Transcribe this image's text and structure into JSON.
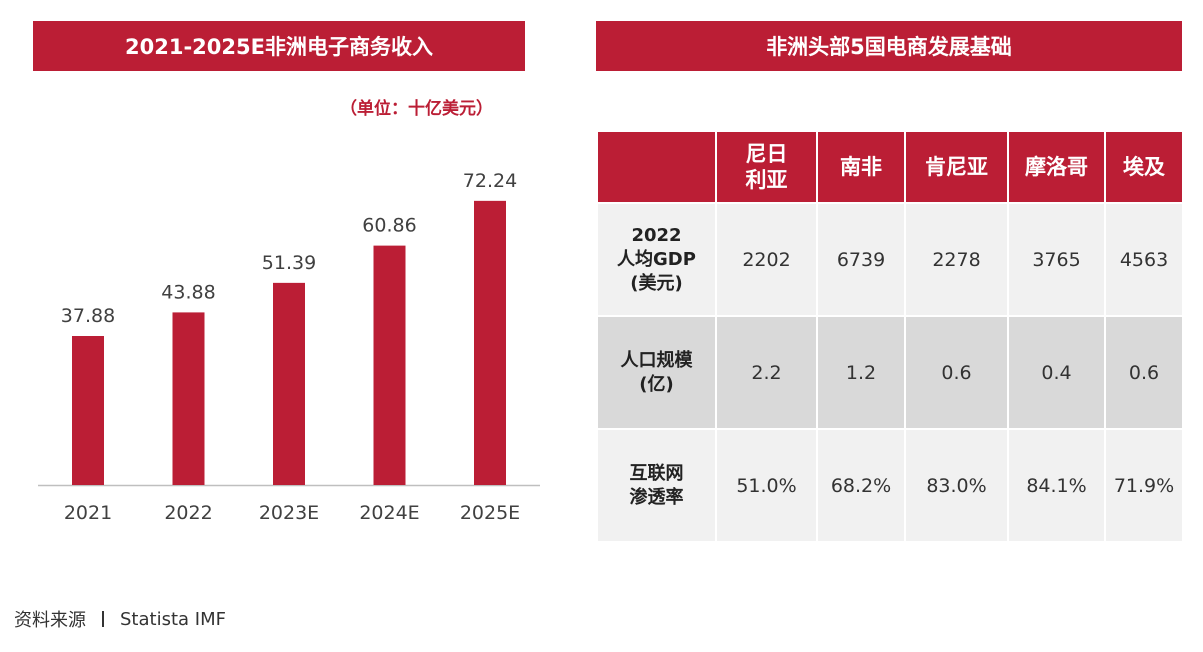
{
  "left_title": "2021-2025E非洲电子商务收入",
  "right_title": "非洲头部5国电商发展基础",
  "unit": "（单位：十亿美元）",
  "chart_data": {
    "type": "bar",
    "categories": [
      "2021",
      "2022",
      "2023E",
      "2024E",
      "2025E"
    ],
    "values": [
      37.88,
      43.88,
      51.39,
      60.86,
      72.24
    ],
    "value_labels": [
      "37.88",
      "43.88",
      "51.39",
      "60.86",
      "72.24"
    ],
    "title": "2021-2025E非洲电子商务收入",
    "ylim": [
      0,
      75
    ],
    "grid": false,
    "color": "#bb1e35"
  },
  "table": {
    "columns": [
      "",
      "尼日\n利亚",
      "南非",
      "肯尼亚",
      "摩洛哥",
      "埃及"
    ],
    "rows": [
      {
        "label": "2022\n人均GDP\n(美元)",
        "values": [
          "2202",
          "6739",
          "2278",
          "3765",
          "4563"
        ]
      },
      {
        "label": "人口规模\n(亿)",
        "values": [
          "2.2",
          "1.2",
          "0.6",
          "0.4",
          "0.6"
        ]
      },
      {
        "label": "互联网\n渗透率",
        "values": [
          "51.0%",
          "68.2%",
          "83.0%",
          "84.1%",
          "71.9%"
        ]
      }
    ]
  },
  "source": {
    "label": "资料来源",
    "items": "Statista  IMF"
  }
}
